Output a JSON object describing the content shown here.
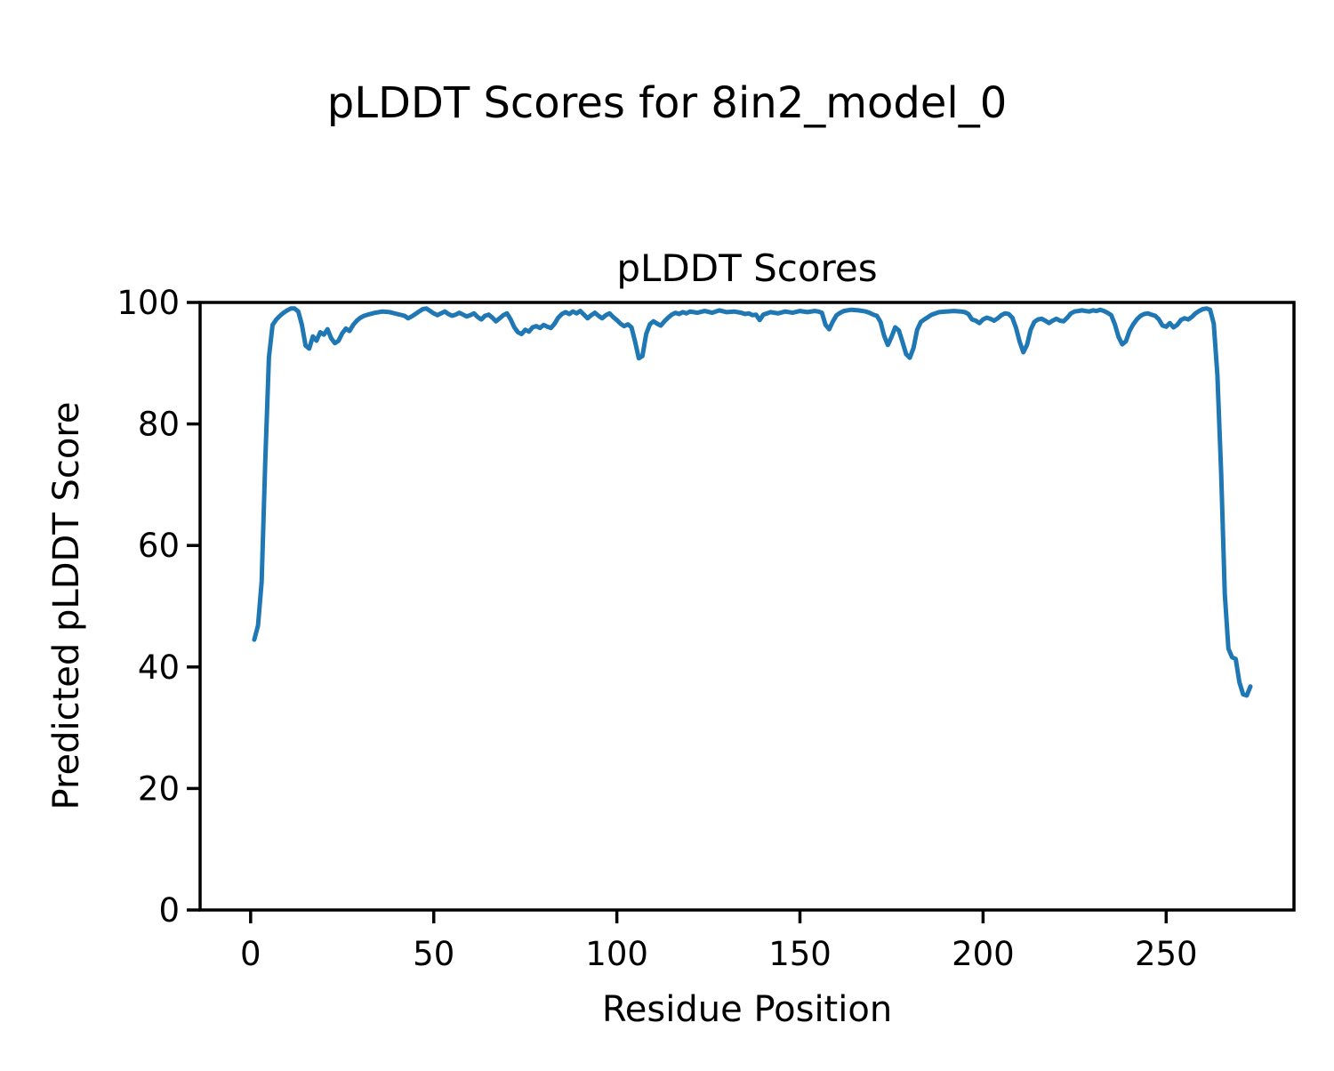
{
  "figure": {
    "title": "pLDDT Scores for 8in2_model_0",
    "background": "#ffffff",
    "text_color": "#000000"
  },
  "chart_data": {
    "type": "line",
    "title": "pLDDT Scores",
    "xlabel": "Residue Position",
    "ylabel": "Predicted pLDDT Score",
    "xlim": [
      -13.8,
      284.9
    ],
    "ylim": [
      0,
      100
    ],
    "xticks": [
      0,
      50,
      100,
      150,
      200,
      250
    ],
    "yticks": [
      0,
      20,
      40,
      60,
      80,
      100
    ],
    "grid": false,
    "legend": "none",
    "line_color": "#1f77b4",
    "line_width": 5,
    "series": [
      {
        "name": "pLDDT",
        "points": [
          [
            1,
            44.5
          ],
          [
            2,
            46.8
          ],
          [
            3,
            54
          ],
          [
            4,
            74
          ],
          [
            5,
            91
          ],
          [
            6,
            96.3
          ],
          [
            7,
            97.2
          ],
          [
            8,
            97.8
          ],
          [
            9,
            98.3
          ],
          [
            10,
            98.7
          ],
          [
            11,
            99.0
          ],
          [
            12,
            99.0
          ],
          [
            13,
            98.5
          ],
          [
            14,
            96.3
          ],
          [
            15,
            92.9
          ],
          [
            16,
            92.4
          ],
          [
            17,
            94.4
          ],
          [
            18,
            93.7
          ],
          [
            19,
            95.1
          ],
          [
            20,
            94.7
          ],
          [
            21,
            95.6
          ],
          [
            22,
            94.1
          ],
          [
            23,
            93.3
          ],
          [
            24,
            93.7
          ],
          [
            25,
            94.9
          ],
          [
            26,
            95.7
          ],
          [
            27,
            95.3
          ],
          [
            28,
            96.3
          ],
          [
            29,
            97.0
          ],
          [
            30,
            97.5
          ],
          [
            31,
            97.8
          ],
          [
            32,
            98.0
          ],
          [
            34,
            98.3
          ],
          [
            36,
            98.5
          ],
          [
            38,
            98.4
          ],
          [
            40,
            98.1
          ],
          [
            42,
            97.8
          ],
          [
            43,
            97.4
          ],
          [
            44,
            97.7
          ],
          [
            45,
            98.1
          ],
          [
            46,
            98.5
          ],
          [
            47,
            98.9
          ],
          [
            48,
            99.0
          ],
          [
            49,
            98.6
          ],
          [
            50,
            98.2
          ],
          [
            51,
            97.9
          ],
          [
            52,
            98.2
          ],
          [
            53,
            98.5
          ],
          [
            54,
            98.1
          ],
          [
            55,
            97.8
          ],
          [
            56,
            98.0
          ],
          [
            57,
            98.3
          ],
          [
            58,
            98.0
          ],
          [
            59,
            97.7
          ],
          [
            60,
            97.9
          ],
          [
            61,
            98.2
          ],
          [
            62,
            97.6
          ],
          [
            63,
            97.2
          ],
          [
            64,
            97.8
          ],
          [
            65,
            98.0
          ],
          [
            66,
            97.5
          ],
          [
            67,
            96.9
          ],
          [
            68,
            97.4
          ],
          [
            69,
            97.9
          ],
          [
            70,
            98.2
          ],
          [
            71,
            97.2
          ],
          [
            72,
            95.9
          ],
          [
            73,
            95.1
          ],
          [
            74,
            94.8
          ],
          [
            75,
            95.5
          ],
          [
            76,
            95.2
          ],
          [
            77,
            95.9
          ],
          [
            78,
            96.1
          ],
          [
            79,
            95.8
          ],
          [
            80,
            96.3
          ],
          [
            81,
            96.0
          ],
          [
            82,
            95.8
          ],
          [
            83,
            96.5
          ],
          [
            84,
            97.5
          ],
          [
            85,
            98.1
          ],
          [
            86,
            98.4
          ],
          [
            87,
            98.1
          ],
          [
            88,
            98.5
          ],
          [
            89,
            98.2
          ],
          [
            90,
            98.6
          ],
          [
            91,
            98.0
          ],
          [
            92,
            97.4
          ],
          [
            93,
            97.9
          ],
          [
            94,
            98.3
          ],
          [
            95,
            97.8
          ],
          [
            96,
            97.4
          ],
          [
            97,
            97.9
          ],
          [
            98,
            98.2
          ],
          [
            99,
            97.6
          ],
          [
            100,
            97.1
          ],
          [
            101,
            96.5
          ],
          [
            102,
            96.1
          ],
          [
            103,
            96.4
          ],
          [
            104,
            95.9
          ],
          [
            105,
            93.5
          ],
          [
            106,
            90.8
          ],
          [
            107,
            91.2
          ],
          [
            108,
            94.8
          ],
          [
            109,
            96.4
          ],
          [
            110,
            96.9
          ],
          [
            111,
            96.5
          ],
          [
            112,
            96.2
          ],
          [
            113,
            96.9
          ],
          [
            114,
            97.5
          ],
          [
            115,
            98.0
          ],
          [
            116,
            98.3
          ],
          [
            117,
            98.1
          ],
          [
            118,
            98.4
          ],
          [
            119,
            98.2
          ],
          [
            120,
            98.5
          ],
          [
            122,
            98.3
          ],
          [
            124,
            98.6
          ],
          [
            126,
            98.3
          ],
          [
            128,
            98.7
          ],
          [
            130,
            98.4
          ],
          [
            132,
            98.5
          ],
          [
            134,
            98.3
          ],
          [
            135,
            98.1
          ],
          [
            136,
            98.2
          ],
          [
            137,
            97.9
          ],
          [
            138,
            98.0
          ],
          [
            139,
            97.1
          ],
          [
            140,
            98.0
          ],
          [
            142,
            98.4
          ],
          [
            144,
            98.2
          ],
          [
            146,
            98.5
          ],
          [
            148,
            98.3
          ],
          [
            150,
            98.6
          ],
          [
            152,
            98.4
          ],
          [
            154,
            98.6
          ],
          [
            155,
            98.5
          ],
          [
            156,
            98.3
          ],
          [
            157,
            96.3
          ],
          [
            158,
            95.6
          ],
          [
            159,
            96.9
          ],
          [
            160,
            97.9
          ],
          [
            161,
            98.3
          ],
          [
            162,
            98.6
          ],
          [
            164,
            98.8
          ],
          [
            166,
            98.7
          ],
          [
            168,
            98.5
          ],
          [
            169,
            98.3
          ],
          [
            170,
            98.0
          ],
          [
            171,
            97.8
          ],
          [
            172,
            96.8
          ],
          [
            173,
            94.5
          ],
          [
            174,
            93.0
          ],
          [
            175,
            94.3
          ],
          [
            176,
            95.9
          ],
          [
            177,
            95.4
          ],
          [
            178,
            93.5
          ],
          [
            179,
            91.5
          ],
          [
            180,
            90.9
          ],
          [
            181,
            92.5
          ],
          [
            182,
            95.5
          ],
          [
            183,
            96.8
          ],
          [
            184,
            97.2
          ],
          [
            185,
            97.6
          ],
          [
            186,
            98.0
          ],
          [
            188,
            98.4
          ],
          [
            190,
            98.5
          ],
          [
            192,
            98.6
          ],
          [
            194,
            98.5
          ],
          [
            195,
            98.4
          ],
          [
            196,
            98.1
          ],
          [
            197,
            97.2
          ],
          [
            198,
            97.0
          ],
          [
            199,
            96.6
          ],
          [
            200,
            97.2
          ],
          [
            201,
            97.5
          ],
          [
            202,
            97.3
          ],
          [
            203,
            97.0
          ],
          [
            204,
            97.4
          ],
          [
            205,
            97.9
          ],
          [
            206,
            98.2
          ],
          [
            207,
            98.1
          ],
          [
            208,
            97.5
          ],
          [
            209,
            95.8
          ],
          [
            210,
            93.5
          ],
          [
            211,
            91.8
          ],
          [
            212,
            93.0
          ],
          [
            213,
            95.5
          ],
          [
            214,
            96.8
          ],
          [
            215,
            97.2
          ],
          [
            216,
            97.3
          ],
          [
            217,
            97.0
          ],
          [
            218,
            96.6
          ],
          [
            219,
            97.0
          ],
          [
            220,
            97.3
          ],
          [
            221,
            97.0
          ],
          [
            222,
            96.9
          ],
          [
            223,
            97.5
          ],
          [
            224,
            98.2
          ],
          [
            225,
            98.5
          ],
          [
            226,
            98.6
          ],
          [
            227,
            98.7
          ],
          [
            228,
            98.6
          ],
          [
            229,
            98.5
          ],
          [
            230,
            98.7
          ],
          [
            231,
            98.6
          ],
          [
            232,
            98.8
          ],
          [
            233,
            98.6
          ],
          [
            234,
            98.3
          ],
          [
            235,
            97.9
          ],
          [
            236,
            96.4
          ],
          [
            237,
            94.3
          ],
          [
            238,
            93.1
          ],
          [
            239,
            93.6
          ],
          [
            240,
            95.3
          ],
          [
            241,
            96.4
          ],
          [
            242,
            97.2
          ],
          [
            243,
            97.8
          ],
          [
            244,
            98.1
          ],
          [
            245,
            98.2
          ],
          [
            246,
            98.0
          ],
          [
            247,
            97.8
          ],
          [
            248,
            97.2
          ],
          [
            249,
            96.2
          ],
          [
            250,
            96.0
          ],
          [
            251,
            96.6
          ],
          [
            252,
            95.9
          ],
          [
            253,
            96.3
          ],
          [
            254,
            97.1
          ],
          [
            255,
            97.4
          ],
          [
            256,
            97.2
          ],
          [
            257,
            97.6
          ],
          [
            258,
            98.2
          ],
          [
            259,
            98.6
          ],
          [
            260,
            98.9
          ],
          [
            261,
            99.0
          ],
          [
            262,
            98.8
          ],
          [
            263,
            96.5
          ],
          [
            264,
            88
          ],
          [
            265,
            72
          ],
          [
            266,
            52
          ],
          [
            267,
            43
          ],
          [
            268,
            41.6
          ],
          [
            269,
            41.3
          ],
          [
            270,
            37.5
          ],
          [
            271,
            35.5
          ],
          [
            272,
            35.3
          ],
          [
            273,
            36.8
          ]
        ]
      }
    ]
  }
}
